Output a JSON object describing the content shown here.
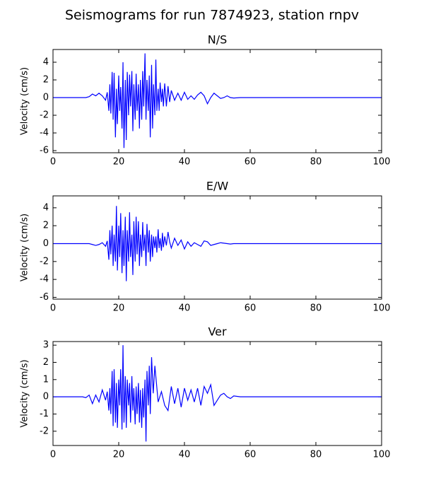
{
  "title": "Seismograms for run 7874923, station rnpv",
  "chart_data": [
    {
      "type": "line",
      "title": "N/S",
      "y_label": "Velocity (cm/s)",
      "xlim": [
        0,
        100
      ],
      "xticks": [
        0,
        20,
        40,
        60,
        80,
        100
      ],
      "ylim": [
        -6.24,
        5.44
      ],
      "yticks": [
        -6,
        -4,
        -2,
        0,
        2,
        4
      ],
      "series": [
        {
          "name": "N/S",
          "color": "#0000ff",
          "x": [
            0,
            10,
            11,
            12,
            13,
            14,
            15,
            16,
            16.5,
            17,
            17.3,
            17.6,
            18,
            18.3,
            18.6,
            19,
            19.3,
            19.6,
            20,
            20.3,
            20.6,
            21,
            21.3,
            21.6,
            22,
            22.3,
            22.6,
            23,
            23.3,
            23.6,
            24,
            24.3,
            24.6,
            25,
            25.3,
            25.6,
            26,
            26.3,
            26.6,
            27,
            27.3,
            27.6,
            28,
            28.3,
            28.6,
            29,
            29.3,
            29.6,
            30,
            30.3,
            30.6,
            31,
            31.3,
            31.6,
            32,
            32.3,
            32.6,
            33,
            33.3,
            33.6,
            34,
            34.5,
            35,
            35.5,
            36,
            37,
            38,
            39,
            40,
            41,
            42,
            43,
            44,
            45,
            46,
            47,
            48,
            49,
            50,
            51,
            52,
            53,
            54,
            55,
            57,
            100
          ],
          "values": [
            0,
            0,
            0.1,
            0.4,
            0.2,
            0.5,
            0.2,
            -0.3,
            0.6,
            -1.5,
            1.5,
            -1.8,
            2.9,
            -2.5,
            2.8,
            -4.5,
            1.0,
            -3.0,
            2.5,
            -1.5,
            1.2,
            -3.5,
            4.0,
            -5.7,
            2.0,
            -4.8,
            2.9,
            -2.0,
            2.6,
            -1.0,
            3.0,
            -3.8,
            1.5,
            -2.5,
            2.7,
            -1.5,
            1.5,
            -3.5,
            2.0,
            -2.5,
            3.0,
            -1.0,
            5.0,
            -2.5,
            2.0,
            -1.5,
            2.5,
            -4.5,
            3.7,
            -3.5,
            1.5,
            -2.0,
            4.3,
            -1.5,
            1.0,
            -1.5,
            1.7,
            -0.5,
            1.0,
            -1.0,
            1.6,
            -1.0,
            1.3,
            -0.5,
            0.8,
            -0.3,
            0.5,
            -0.3,
            0.6,
            -0.2,
            0.2,
            -0.2,
            0.3,
            0.6,
            0.2,
            -0.7,
            0.0,
            0.5,
            0.2,
            -0.1,
            0.0,
            0.2,
            0.0,
            -0.05,
            0.0,
            0
          ]
        }
      ]
    },
    {
      "type": "line",
      "title": "E/W",
      "y_label": "Velocity (cm/s)",
      "xlim": [
        0,
        100
      ],
      "xticks": [
        0,
        20,
        40,
        60,
        80,
        100
      ],
      "ylim": [
        -6.2,
        5.33
      ],
      "yticks": [
        -6,
        -4,
        -2,
        0,
        2,
        4
      ],
      "series": [
        {
          "name": "E/W",
          "color": "#0000ff",
          "x": [
            0,
            10,
            11,
            12,
            13,
            14,
            15,
            16,
            16.5,
            17,
            17.3,
            17.6,
            18,
            18.3,
            18.6,
            19,
            19.3,
            19.6,
            20,
            20.3,
            20.6,
            21,
            21.3,
            21.6,
            22,
            22.3,
            22.6,
            23,
            23.3,
            23.6,
            24,
            24.3,
            24.6,
            25,
            25.3,
            25.6,
            26,
            26.3,
            26.6,
            27,
            27.3,
            27.6,
            28,
            28.3,
            28.6,
            29,
            29.3,
            29.6,
            30,
            30.3,
            30.6,
            31,
            31.3,
            31.6,
            32,
            32.3,
            32.6,
            33,
            33.3,
            33.6,
            34,
            34.5,
            35,
            35.5,
            36,
            37,
            38,
            39,
            40,
            41,
            42,
            43,
            44,
            45,
            46,
            47,
            48,
            49,
            50,
            51,
            52,
            53,
            54,
            55,
            57,
            100
          ],
          "values": [
            0,
            0,
            0.0,
            -0.1,
            -0.2,
            -0.1,
            0.1,
            -0.3,
            0.3,
            -1.8,
            1.5,
            -1.2,
            2.0,
            -2.5,
            1.0,
            -2.0,
            4.2,
            -3.0,
            2.0,
            -1.5,
            3.4,
            -3.3,
            1.5,
            -2.5,
            3.0,
            -4.2,
            1.5,
            -2.0,
            3.5,
            -1.5,
            1.0,
            -3.5,
            2.5,
            -2.0,
            3.0,
            -1.2,
            2.5,
            -2.5,
            1.0,
            -1.5,
            2.4,
            -0.8,
            1.0,
            -2.5,
            2.2,
            -1.0,
            1.5,
            -2.0,
            1.0,
            -1.5,
            0.8,
            -0.5,
            0.8,
            -1.0,
            1.6,
            -0.5,
            0.6,
            -0.8,
            1.2,
            -0.4,
            0.8,
            -0.2,
            1.3,
            0.2,
            -0.5,
            0.6,
            -0.2,
            0.4,
            -0.6,
            0.2,
            -0.3,
            0.1,
            -0.1,
            -0.3,
            0.3,
            0.2,
            -0.2,
            -0.1,
            0.0,
            0.1,
            0.05,
            0.0,
            -0.05,
            0.0,
            0.0,
            0
          ]
        }
      ]
    },
    {
      "type": "line",
      "title": "Ver",
      "y_label": "Velocity (cm/s)",
      "xlim": [
        0,
        100
      ],
      "xticks": [
        0,
        20,
        40,
        60,
        80,
        100
      ],
      "ylim": [
        -2.83,
        3.21
      ],
      "yticks": [
        -2,
        -1,
        0,
        1,
        2,
        3
      ],
      "series": [
        {
          "name": "Ver",
          "color": "#0000ff",
          "x": [
            0,
            9,
            10,
            11,
            12,
            13,
            14,
            15,
            16,
            16.5,
            17,
            17.3,
            17.6,
            18,
            18.3,
            18.6,
            19,
            19.3,
            19.6,
            20,
            20.3,
            20.6,
            21,
            21.3,
            21.6,
            22,
            22.3,
            22.6,
            23,
            23.3,
            23.6,
            24,
            24.3,
            24.6,
            25,
            25.3,
            25.6,
            26,
            26.3,
            26.6,
            27,
            27.3,
            27.6,
            28,
            28.3,
            28.6,
            29,
            29.3,
            29.6,
            30,
            30.5,
            31,
            32,
            33,
            34,
            35,
            36,
            37,
            38,
            39,
            40,
            41,
            42,
            43,
            44,
            45,
            46,
            47,
            48,
            49,
            50,
            51,
            52,
            53,
            54,
            55,
            57,
            100
          ],
          "values": [
            0,
            0,
            -0.05,
            0.1,
            -0.4,
            0.1,
            -0.3,
            0.4,
            -0.2,
            0.3,
            -0.8,
            0.5,
            -1.0,
            1.5,
            -1.7,
            1.6,
            -1.5,
            0.8,
            -1.8,
            1.0,
            -0.5,
            1.6,
            -1.9,
            3.0,
            -1.5,
            1.2,
            -1.8,
            1.0,
            -0.5,
            0.8,
            -1.5,
            1.2,
            -0.8,
            0.5,
            -1.6,
            0.6,
            -1.0,
            0.8,
            -1.5,
            0.4,
            -1.8,
            0.5,
            -1.2,
            1.0,
            -2.6,
            1.5,
            -0.5,
            1.8,
            -1.0,
            2.3,
            0.2,
            1.8,
            -0.3,
            0.3,
            -0.5,
            -0.8,
            0.6,
            -0.4,
            0.5,
            -0.6,
            0.5,
            -0.2,
            0.4,
            -0.3,
            0.5,
            -0.5,
            0.6,
            0.2,
            0.7,
            -0.5,
            -0.2,
            0.1,
            0.2,
            0.0,
            -0.1,
            0.05,
            0.0,
            0
          ]
        }
      ]
    }
  ]
}
